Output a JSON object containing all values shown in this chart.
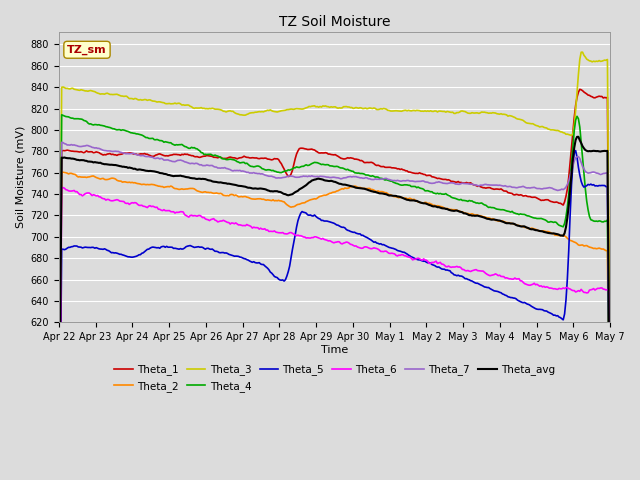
{
  "title": "TZ Soil Moisture",
  "ylabel": "Soil Moisture (mV)",
  "xlabel": "Time",
  "label_box": "TZ_sm",
  "ylim": [
    620,
    892
  ],
  "yticks": [
    620,
    640,
    660,
    680,
    700,
    720,
    740,
    760,
    780,
    800,
    820,
    840,
    860,
    880
  ],
  "background_color": "#dcdcdc",
  "plot_bg_color": "#dcdcdc",
  "colors": {
    "Theta_1": "#cc0000",
    "Theta_2": "#ff8800",
    "Theta_3": "#cccc00",
    "Theta_4": "#00aa00",
    "Theta_5": "#0000cc",
    "Theta_6": "#ff00ff",
    "Theta_7": "#9966cc",
    "Theta_avg": "#000000"
  },
  "x_labels": [
    "Apr 22",
    "Apr 23",
    "Apr 24",
    "Apr 25",
    "Apr 26",
    "Apr 27",
    "Apr 28",
    "Apr 29",
    "Apr 30",
    "May 1",
    "May 2",
    "May 3",
    "May 4",
    "May 5",
    "May 6",
    "May 7"
  ],
  "n_points": 400
}
